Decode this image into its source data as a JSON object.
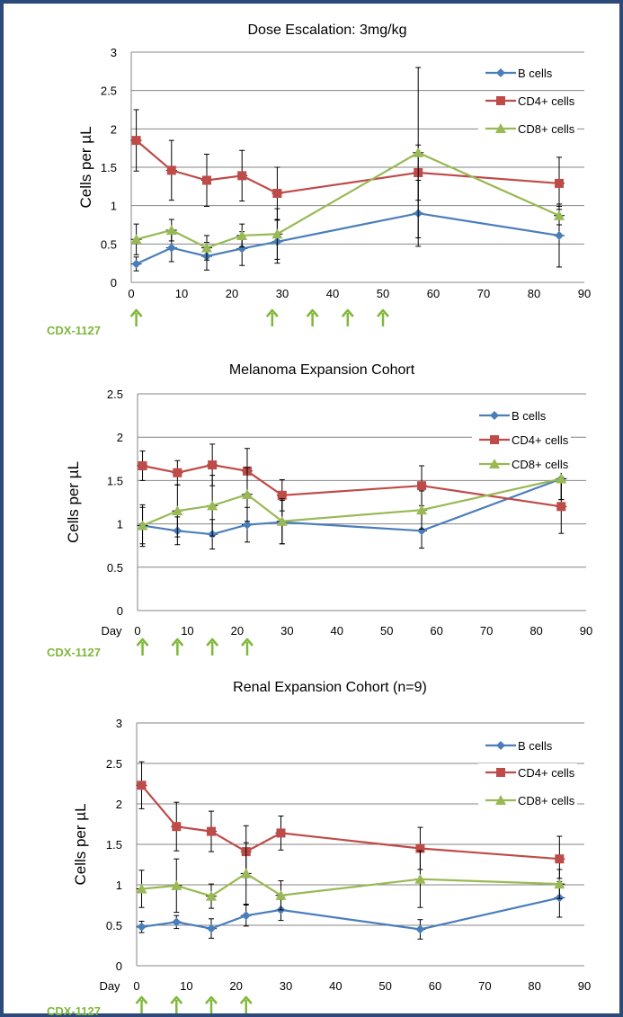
{
  "drug_label": "CDX-1127",
  "drug_color": "#7fb83a",
  "series_colors": {
    "B cells": "#4a7ebb",
    "CD4+ cells": "#be4b48",
    "CD8+ cells": "#98b954"
  },
  "chart_data": [
    {
      "type": "line",
      "title": "Dose Escalation: 3mg/kg",
      "ylabel": "Cells per µL",
      "xlabel": "",
      "xlim": [
        0,
        90
      ],
      "ylim": [
        0,
        3
      ],
      "xticks": [
        "0",
        "10",
        "20",
        "30",
        "40",
        "50",
        "60",
        "70",
        "80",
        "90"
      ],
      "yticks": [
        "0",
        "0.5",
        "1",
        "1.5",
        "2",
        "2.5",
        "3"
      ],
      "grid": "horizontal",
      "legend": "top-right",
      "dosing_days": [
        1,
        28,
        36,
        43,
        50
      ],
      "series": [
        {
          "name": "B cells",
          "marker": "diamond",
          "x": [
            1,
            8,
            15,
            22,
            29,
            57,
            85
          ],
          "y": [
            0.24,
            0.45,
            0.34,
            0.44,
            0.53,
            0.9,
            0.61
          ],
          "err": [
            0.09,
            0.18,
            0.18,
            0.22,
            0.28,
            0.43,
            0.41
          ]
        },
        {
          "name": "CD4+ cells",
          "marker": "square",
          "x": [
            1,
            8,
            15,
            22,
            29,
            57,
            85
          ],
          "y": [
            1.85,
            1.46,
            1.33,
            1.39,
            1.16,
            1.43,
            1.29
          ],
          "err": [
            0.4,
            0.39,
            0.34,
            0.33,
            0.34,
            0.36,
            0.34
          ]
        },
        {
          "name": "CD8+ cells",
          "marker": "triangle",
          "x": [
            1,
            8,
            15,
            22,
            29,
            57,
            85
          ],
          "y": [
            0.56,
            0.68,
            0.45,
            0.61,
            0.63,
            1.69,
            0.87
          ],
          "err": [
            0.2,
            0.14,
            0.16,
            0.15,
            0.33,
            1.11,
            0.12
          ]
        }
      ]
    },
    {
      "type": "line",
      "title": "Melanoma Expansion Cohort",
      "ylabel": "Cells per µL",
      "xlabel": "Day",
      "xlim": [
        0,
        90
      ],
      "ylim": [
        0,
        2.5
      ],
      "xticks": [
        "0",
        "10",
        "20",
        "30",
        "40",
        "50",
        "60",
        "70",
        "80",
        "90"
      ],
      "yticks": [
        "0",
        "0.5",
        "1",
        "1.5",
        "2",
        "2.5"
      ],
      "grid": "horizontal",
      "legend": "top-right",
      "dosing_days": [
        1,
        8,
        15,
        22
      ],
      "series": [
        {
          "name": "B cells",
          "marker": "diamond",
          "x": [
            1,
            8,
            15,
            22,
            29,
            57,
            85
          ],
          "y": [
            0.98,
            0.92,
            0.88,
            0.99,
            1.02,
            0.92,
            1.52
          ],
          "err": [
            0.24,
            0.16,
            0.17,
            0.2,
            0.25,
            0.2,
            0.24
          ]
        },
        {
          "name": "CD4+ cells",
          "marker": "square",
          "x": [
            1,
            8,
            15,
            22,
            29,
            57,
            85
          ],
          "y": [
            1.67,
            1.59,
            1.68,
            1.61,
            1.33,
            1.44,
            1.2
          ],
          "err": [
            0.17,
            0.14,
            0.24,
            0.26,
            0.18,
            0.23,
            0.31
          ]
        },
        {
          "name": "CD8+ cells",
          "marker": "triangle",
          "x": [
            1,
            8,
            15,
            22,
            29,
            57,
            85
          ],
          "y": [
            0.98,
            1.15,
            1.21,
            1.34,
            1.03,
            1.16,
            1.52
          ],
          "err": [
            0.21,
            0.3,
            0.35,
            0.31,
            0.26,
            0.22,
            0.24
          ]
        }
      ]
    },
    {
      "type": "line",
      "title": "Renal Expansion Cohort (n=9)",
      "ylabel": "Cells per µL",
      "xlabel": "Day",
      "xlim": [
        0,
        90
      ],
      "ylim": [
        0,
        3
      ],
      "xticks": [
        "0",
        "10",
        "20",
        "30",
        "40",
        "50",
        "60",
        "70",
        "80",
        "90"
      ],
      "yticks": [
        "0",
        "0.5",
        "1",
        "1.5",
        "2",
        "2.5",
        "3"
      ],
      "grid": "horizontal",
      "legend": "top-right",
      "dosing_days": [
        1,
        8,
        15,
        22
      ],
      "series": [
        {
          "name": "B cells",
          "marker": "diamond",
          "x": [
            1,
            8,
            15,
            22,
            29,
            57,
            85
          ],
          "y": [
            0.48,
            0.54,
            0.46,
            0.62,
            0.69,
            0.45,
            0.84
          ],
          "err": [
            0.07,
            0.08,
            0.12,
            0.13,
            0.13,
            0.12,
            0.24
          ]
        },
        {
          "name": "CD4+ cells",
          "marker": "square",
          "x": [
            1,
            8,
            15,
            22,
            29,
            57,
            85
          ],
          "y": [
            2.23,
            1.72,
            1.66,
            1.41,
            1.64,
            1.45,
            1.32
          ],
          "err": [
            0.29,
            0.3,
            0.25,
            0.32,
            0.21,
            0.26,
            0.28
          ]
        },
        {
          "name": "CD8+ cells",
          "marker": "triangle",
          "x": [
            1,
            8,
            15,
            22,
            29,
            57,
            85
          ],
          "y": [
            0.95,
            0.99,
            0.86,
            1.14,
            0.87,
            1.07,
            1.01
          ],
          "err": [
            0.23,
            0.33,
            0.15,
            0.38,
            0.18,
            0.35,
            0.18
          ]
        }
      ]
    }
  ]
}
